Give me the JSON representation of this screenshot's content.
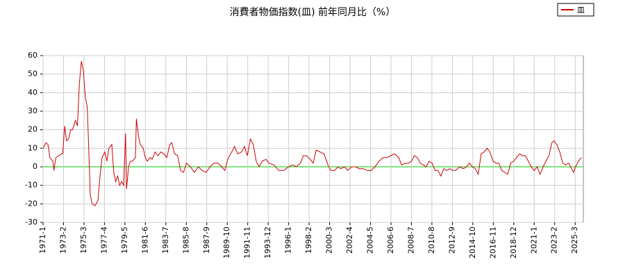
{
  "chart_data": {
    "type": "line",
    "title": "消費者物価指数(皿) 前年同月比（%）",
    "x": [
      1971.0,
      1971.3,
      1971.5,
      1971.7,
      1972.0,
      1972.1,
      1972.3,
      1972.6,
      1972.9,
      1973.0,
      1973.2,
      1973.4,
      1973.6,
      1973.8,
      1974.0,
      1974.3,
      1974.5,
      1974.7,
      1974.9,
      1975.1,
      1975.3,
      1975.5,
      1975.7,
      1975.8,
      1976.0,
      1976.3,
      1976.6,
      1976.8,
      1977.0,
      1977.3,
      1977.5,
      1977.7,
      1978.0,
      1978.2,
      1978.4,
      1978.6,
      1978.8,
      1979.0,
      1979.2,
      1979.4,
      1979.5,
      1979.7,
      1979.9,
      1980.1,
      1980.4,
      1980.5,
      1980.7,
      1980.9,
      1981.2,
      1981.4,
      1981.6,
      1981.9,
      1982.1,
      1982.4,
      1982.7,
      1983.0,
      1983.3,
      1983.6,
      1983.9,
      1984.1,
      1984.4,
      1984.7,
      1985.0,
      1985.3,
      1985.6,
      1986.0,
      1986.4,
      1986.8,
      1987.2,
      1987.6,
      1988.0,
      1988.4,
      1988.8,
      1989.2,
      1989.5,
      1989.8,
      1990.2,
      1990.5,
      1990.8,
      1991.2,
      1991.5,
      1991.8,
      1992.1,
      1992.4,
      1992.7,
      1993.0,
      1993.3,
      1993.7,
      1994.0,
      1994.5,
      1995.0,
      1995.5,
      1996.0,
      1996.4,
      1996.8,
      1997.2,
      1997.5,
      1997.8,
      1998.2,
      1998.5,
      1998.8,
      1999.2,
      1999.6,
      2000.0,
      2000.3,
      2000.7,
      2001.0,
      2001.3,
      2001.7,
      2002.0,
      2002.4,
      2002.8,
      2003.2,
      2003.6,
      2004.0,
      2004.4,
      2004.8,
      2005.2,
      2005.6,
      2006.0,
      2006.4,
      2006.8,
      2007.2,
      2007.5,
      2007.9,
      2008.2,
      2008.5,
      2008.8,
      2009.1,
      2009.4,
      2009.7,
      2010.0,
      2010.3,
      2010.6,
      2010.9,
      2011.2,
      2011.5,
      2011.8,
      2012.1,
      2012.4,
      2012.7,
      2013.0,
      2013.4,
      2013.8,
      2014.1,
      2014.4,
      2014.7,
      2015.0,
      2015.3,
      2015.6,
      2015.9,
      2016.2,
      2016.5,
      2016.8,
      2017.1,
      2017.4,
      2017.7,
      2018.0,
      2018.3,
      2018.6,
      2018.9,
      2019.2,
      2019.5,
      2019.8,
      2020.1,
      2020.4,
      2020.7,
      2021.0,
      2021.3,
      2021.6,
      2021.9,
      2022.2,
      2022.5,
      2022.8,
      2023.0,
      2023.3,
      2023.6,
      2023.9,
      2024.2,
      2024.5,
      2024.8,
      2025.0,
      2025.2,
      2025.5,
      2025.8
    ],
    "series": [
      {
        "name": "皿",
        "color": "#cc0000",
        "values": [
          10,
          13,
          12,
          5,
          3,
          -2,
          5,
          6,
          7,
          7,
          22,
          14,
          15,
          20,
          20,
          25,
          22,
          45,
          57,
          52,
          38,
          32,
          2,
          -15,
          -20,
          -21,
          -18,
          -5,
          5,
          8,
          3,
          10,
          12,
          -3,
          -8,
          -5,
          -10,
          -8,
          -10,
          18,
          -12,
          0,
          3,
          3,
          5,
          26,
          17,
          12,
          10,
          5,
          3,
          5,
          4,
          8,
          6,
          8,
          7,
          5,
          12,
          13,
          7,
          6,
          -2,
          -3,
          2,
          0,
          -3,
          0,
          -2,
          -3,
          0,
          2,
          2,
          0,
          -2,
          4,
          8,
          11,
          7,
          8,
          11,
          6,
          15,
          12,
          3,
          0,
          3,
          4,
          2,
          1,
          -2,
          -2,
          0,
          1,
          0,
          2,
          6,
          6,
          4,
          2,
          9,
          8,
          7,
          1,
          -2,
          -2,
          0,
          -1,
          0,
          -2,
          0,
          0,
          -1,
          -1,
          -2,
          -2,
          0,
          3,
          5,
          5,
          6,
          7,
          5,
          1,
          2,
          2,
          3,
          6,
          5,
          2,
          1,
          0,
          3,
          2,
          -2,
          -2,
          -5,
          -1,
          -2,
          -1,
          -2,
          -2,
          0,
          -1,
          0,
          2,
          0,
          -1,
          -4,
          7,
          8,
          10,
          8,
          3,
          2,
          2,
          -2,
          -3,
          -4,
          2,
          3,
          5,
          7,
          6,
          6,
          3,
          0,
          -2,
          0,
          -4,
          0,
          3,
          6,
          13,
          14,
          12,
          8,
          2,
          1,
          2,
          -1,
          -3,
          0,
          3,
          5
        ]
      }
    ],
    "xlim": [
      1971.0,
      2026.0
    ],
    "xticks": [
      {
        "value": 1971.0,
        "label": "1971-1"
      },
      {
        "value": 1973.083,
        "label": "1973-2"
      },
      {
        "value": 1975.167,
        "label": "1975-3"
      },
      {
        "value": 1977.25,
        "label": "1977-4"
      },
      {
        "value": 1979.333,
        "label": "1979-5"
      },
      {
        "value": 1981.417,
        "label": "1981-6"
      },
      {
        "value": 1983.5,
        "label": "1983-7"
      },
      {
        "value": 1985.583,
        "label": "1985-8"
      },
      {
        "value": 1987.667,
        "label": "1987-9"
      },
      {
        "value": 1989.75,
        "label": "1989-10"
      },
      {
        "value": 1991.833,
        "label": "1991-11"
      },
      {
        "value": 1993.917,
        "label": "1993-12"
      },
      {
        "value": 1996.0,
        "label": "1996-1"
      },
      {
        "value": 1998.083,
        "label": "1998-2"
      },
      {
        "value": 2000.167,
        "label": "2000-3"
      },
      {
        "value": 2002.25,
        "label": "2002-4"
      },
      {
        "value": 2004.333,
        "label": "2004-5"
      },
      {
        "value": 2006.417,
        "label": "2006-6"
      },
      {
        "value": 2008.5,
        "label": "2008-7"
      },
      {
        "value": 2010.583,
        "label": "2010-8"
      },
      {
        "value": 2012.667,
        "label": "2012-9"
      },
      {
        "value": 2014.75,
        "label": "2014-10"
      },
      {
        "value": 2016.833,
        "label": "2016-11"
      },
      {
        "value": 2018.917,
        "label": "2018-12"
      },
      {
        "value": 2021.0,
        "label": "2021-1"
      },
      {
        "value": 2023.083,
        "label": "2023-2"
      },
      {
        "value": 2025.167,
        "label": "2025-3"
      }
    ],
    "ylim": [
      -30,
      60
    ],
    "yticks": [
      -30,
      -20,
      -10,
      0,
      10,
      20,
      30,
      40,
      50,
      60
    ],
    "grid": true,
    "zero_line_color": "#00cc00",
    "legend": "top-right"
  }
}
